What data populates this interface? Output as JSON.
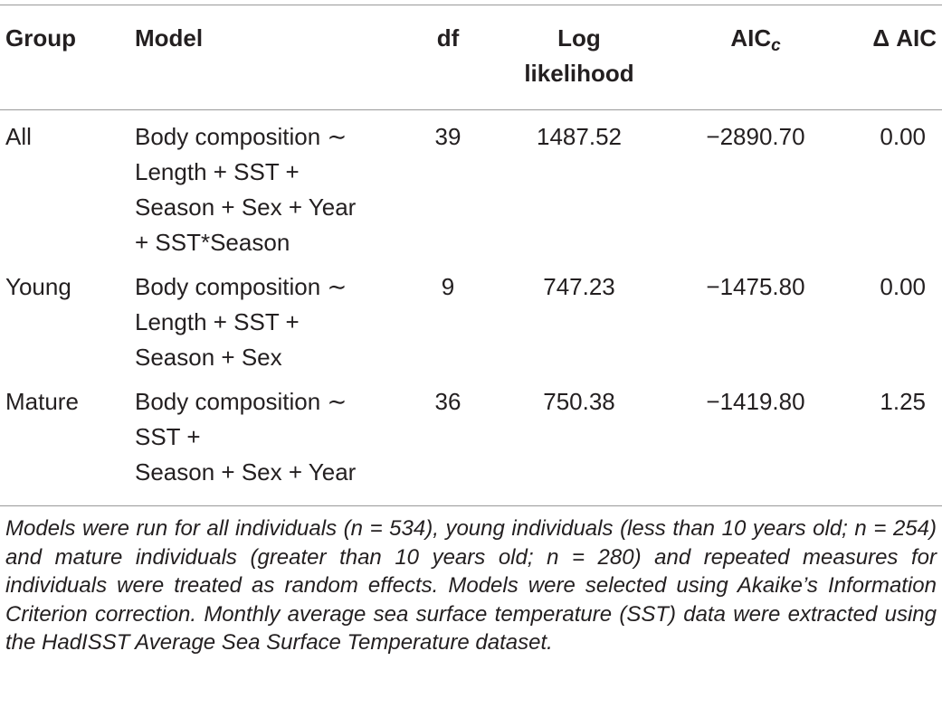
{
  "header": {
    "group": "Group",
    "model": "Model",
    "df": "df",
    "log_likelihood": [
      "Log",
      "likelihood"
    ],
    "aic": "AIC",
    "aic_sub": "c",
    "delta_aic": "Δ AIC"
  },
  "table": {
    "rows": [
      {
        "group": "All",
        "model": [
          "Body composition ∼",
          "Length + SST +",
          "Season + Sex + Year",
          "+ SST*Season"
        ],
        "df": "39",
        "log_likelihood": "1487.52",
        "aic": "−2890.70",
        "delta_aic": "0.00"
      },
      {
        "group": "Young",
        "model": [
          "Body composition ∼",
          "Length + SST +",
          "Season + Sex"
        ],
        "df": "9",
        "log_likelihood": "747.23",
        "aic": "−1475.80",
        "delta_aic": "0.00"
      },
      {
        "group": "Mature",
        "model": [
          "Body composition ∼",
          "SST +",
          "Season + Sex + Year"
        ],
        "df": "36",
        "log_likelihood": "750.38",
        "aic": "−1419.80",
        "delta_aic": "1.25"
      }
    ]
  },
  "note": "Models were run for all individuals (n = 534), young individuals (less than 10 years old; n = 254) and mature individuals (greater than 10 years old; n = 280) and repeated measures for individuals were treated as random effects. Models were selected using Akaike’s Information Criterion correction. Monthly average sea surface temperature (SST) data were extracted using the HadISST Average Sea Surface Temperature dataset."
}
